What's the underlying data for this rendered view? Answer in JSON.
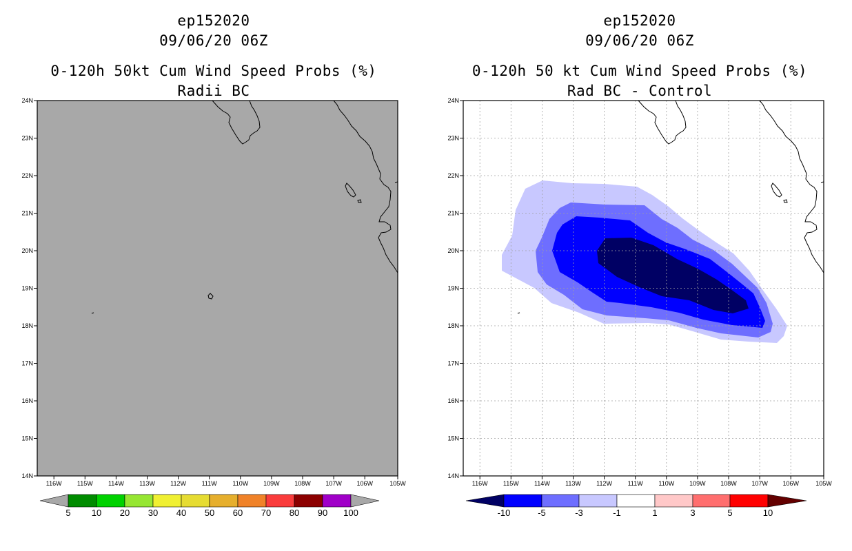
{
  "left_panel": {
    "title_line1": "ep152020",
    "title_line2": "09/06/20 06Z",
    "title_line3": "0-120h 50kt Cum Wind Speed Probs (%)",
    "title_line4": "Radii BC",
    "map_fill": "#a8a8a8",
    "colorbar": {
      "colors": [
        "#008c00",
        "#00d200",
        "#96e632",
        "#f0f032",
        "#e6dc32",
        "#e6af2d",
        "#f08228",
        "#fa3c3c",
        "#8c0000",
        "#a000c8"
      ],
      "labels": [
        "5",
        "10",
        "20",
        "30",
        "40",
        "50",
        "60",
        "70",
        "80",
        "90",
        "100"
      ],
      "end_color": "#a8a8a8"
    }
  },
  "right_panel": {
    "title_line1": "ep152020",
    "title_line2": "09/06/20 06Z",
    "title_line3": "0-120h 50 kt Cum Wind Speed Probs (%)",
    "title_line4": "Rad BC - Control",
    "contour_colors": {
      "lt_minus1": "#c8c8ff",
      "lt_minus3": "#6e6eff",
      "lt_minus5": "#0000ff",
      "lt_minus10": "#000064"
    },
    "colorbar": {
      "colors": [
        "#0000ff",
        "#6e6eff",
        "#c8c8ff",
        "#ffffff",
        "#ffc8c8",
        "#ff6e6e",
        "#ff0000"
      ],
      "labels": [
        "-10",
        "-5",
        "-3",
        "-1",
        "1",
        "3",
        "5",
        "10"
      ],
      "low_end_color": "#000064",
      "high_end_color": "#640000"
    }
  },
  "axes": {
    "lat_labels": [
      "24N",
      "23N",
      "22N",
      "21N",
      "20N",
      "19N",
      "18N",
      "17N",
      "16N",
      "15N",
      "14N"
    ],
    "lon_labels": [
      "116W",
      "115W",
      "114W",
      "113W",
      "112W",
      "111W",
      "110W",
      "109W",
      "108W",
      "107W",
      "106W",
      "105W"
    ]
  }
}
